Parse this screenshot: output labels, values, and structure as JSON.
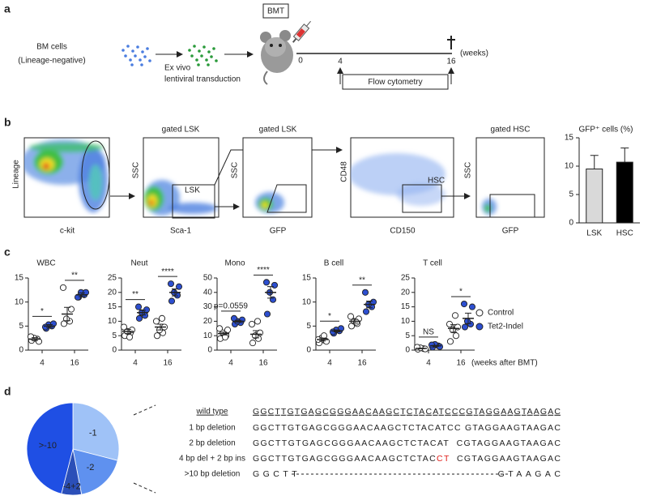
{
  "panel_a": {
    "label": "a",
    "bmt": "BMT",
    "cells": "BM cells",
    "cells_sub": "(Lineage-negative)",
    "transduction": [
      "Ex vivo",
      "lentiviral transduction"
    ],
    "timeline": {
      "ticks": [
        "0",
        "4",
        "16"
      ],
      "unit": "(weeks)"
    },
    "assay": "Flow cytometry"
  },
  "panel_b": {
    "label": "b",
    "flow_plots": [
      {
        "x_label": "c-kit",
        "y_label": "Lineage"
      },
      {
        "title": "gated LSK",
        "x_label": "Sca-1",
        "y_label": "SSC",
        "gate": "LSK"
      },
      {
        "title": "gated LSK",
        "x_label": "GFP",
        "y_label": "SSC"
      },
      {
        "x_label": "CD150",
        "y_label": "CD48",
        "gate": "HSC"
      },
      {
        "title": "gated HSC",
        "x_label": "GFP",
        "y_label": "SSC"
      }
    ],
    "chart": {
      "type": "bar",
      "title": "GFP⁺ cells (%)",
      "categories": [
        "LSK",
        "HSC"
      ],
      "values": [
        9.5,
        10.7
      ],
      "errors": [
        2.4,
        2.5
      ],
      "colors": [
        "#d9d9d9",
        "#000000"
      ],
      "ylim": [
        0,
        15
      ],
      "yticks": [
        0,
        5,
        10,
        15
      ]
    }
  },
  "panel_c": {
    "label": "c",
    "x_label": "(weeks after BMT)",
    "legend": {
      "series": [
        {
          "name": "Control",
          "color": "#ffffff"
        },
        {
          "name": "Tet2-Indel",
          "color": "#2d4fd0"
        }
      ]
    },
    "charts": [
      {
        "type": "dot",
        "title": "WBC",
        "categories": [
          "4",
          "16"
        ],
        "ylim": [
          0,
          15
        ],
        "yticks": [
          0,
          5,
          10,
          15
        ],
        "series": [
          {
            "values": [
              [
                2,
                2.3,
                2.5,
                1.8,
                2.8
              ],
              [
                5.5,
                6,
                6.5,
                8.5,
                13
              ]
            ],
            "mean": [
              2.3,
              7.5
            ],
            "sem": [
              0.3,
              1.4
            ]
          },
          {
            "values": [
              [
                4.5,
                5,
                5.3,
                5.5,
                4.8
              ],
              [
                11,
                11.5,
                12,
                12,
                11
              ]
            ],
            "mean": [
              5,
              11.5
            ],
            "sem": [
              0.3,
              0.4
            ]
          }
        ],
        "significance": [
          "*",
          "**"
        ]
      },
      {
        "type": "dot",
        "title": "Neut",
        "categories": [
          "4",
          "16"
        ],
        "ylim": [
          0,
          25
        ],
        "yticks": [
          0,
          5,
          10,
          15,
          20,
          25
        ],
        "series": [
          {
            "values": [
              [
                5,
                6,
                6.5,
                7,
                8,
                4.5
              ],
              [
                5,
                6,
                7,
                8,
                10,
                11
              ]
            ],
            "mean": [
              6.5,
              8
            ],
            "sem": [
              0.7,
              1
            ]
          },
          {
            "values": [
              [
                11,
                12,
                13,
                14,
                15
              ],
              [
                17,
                19,
                20,
                22,
                23
              ]
            ],
            "mean": [
              13,
              20
            ],
            "sem": [
              0.8,
              1.2
            ]
          }
        ],
        "significance": [
          "**",
          "****"
        ]
      },
      {
        "type": "dot",
        "title": "Mono",
        "categories": [
          "4",
          "16"
        ],
        "ylim": [
          0,
          50
        ],
        "yticks": [
          0,
          10,
          20,
          30,
          40,
          50
        ],
        "series": [
          {
            "values": [
              [
                8,
                10,
                12,
                14,
                15,
                9
              ],
              [
                5,
                8,
                10,
                12,
                18,
                20
              ]
            ],
            "mean": [
              11.5,
              11
            ],
            "sem": [
              1,
              2.5
            ]
          },
          {
            "values": [
              [
                18,
                19,
                20,
                21,
                22
              ],
              [
                25,
                35,
                40,
                45,
                47
              ]
            ],
            "mean": [
              20,
              40
            ],
            "sem": [
              0.7,
              4
            ]
          }
        ],
        "significance": [
          "p=0.0559",
          "****"
        ]
      },
      {
        "type": "dot",
        "title": "B cell",
        "categories": [
          "4",
          "16"
        ],
        "ylim": [
          0,
          15
        ],
        "yticks": [
          0,
          5,
          10,
          15
        ],
        "series": [
          {
            "values": [
              [
                1.5,
                2,
                2.5,
                1.8,
                2.2,
                3
              ],
              [
                5,
                5.5,
                6,
                6.5,
                7,
                5.8
              ]
            ],
            "mean": [
              2.2,
              6
            ],
            "sem": [
              0.3,
              0.4
            ]
          },
          {
            "values": [
              [
                3.5,
                4,
                4.2,
                4.5,
                3.8
              ],
              [
                8,
                9,
                9.5,
                10,
                12
              ]
            ],
            "mean": [
              4,
              9.5
            ],
            "sem": [
              0.2,
              0.7
            ]
          }
        ],
        "significance": [
          "*",
          "**"
        ]
      },
      {
        "type": "dot",
        "title": "T cell",
        "categories": [
          "4",
          "16"
        ],
        "ylim": [
          0,
          25
        ],
        "yticks": [
          0,
          5,
          10,
          15,
          20,
          25
        ],
        "series": [
          {
            "values": [
              [
                0.3,
                0.5,
                0.8,
                0.4,
                1
              ],
              [
                3,
                5,
                7,
                8,
                9,
                12
              ]
            ],
            "mean": [
              0.6,
              7.5
            ],
            "sem": [
              0.1,
              1.3
            ]
          },
          {
            "values": [
              [
                1,
                1.5,
                2,
                1.2,
                1.8
              ],
              [
                8,
                9,
                10,
                15,
                16
              ]
            ],
            "mean": [
              1.5,
              11
            ],
            "sem": [
              0.2,
              1.8
            ]
          }
        ],
        "significance": [
          "NS",
          "*"
        ]
      }
    ]
  },
  "panel_d": {
    "label": "d",
    "chart": {
      "type": "pie",
      "labels": [
        "-1",
        "-2",
        "-4+2",
        ">-10"
      ],
      "values": [
        29,
        18,
        7,
        46
      ],
      "colors": [
        "#9fc2f7",
        "#5f91ef",
        "#2b4fb8",
        "#1f4fe4"
      ]
    },
    "alignment": {
      "header": {
        "label": "wild type",
        "sequence": "GGCTTGTGAGCGGGAACAAGCTCTACATCCCGTAGGAAGTAAGAC"
      },
      "rows": [
        {
          "label": "1 bp deletion",
          "segments": [
            {
              "text": "GGCTTGTGAGCGGGAACAAGCTCTACATCC GTAGGAAGTAAGAC"
            }
          ]
        },
        {
          "label": "2 bp deletion",
          "segments": [
            {
              "text": "GGCTTGTGAGCGGGAACAAGCTCTACAT  CGTAGGAAGTAAGAC"
            }
          ]
        },
        {
          "label": "4 bp del + 2 bp ins",
          "segments": [
            {
              "text": "GGCTTGTGAGCGGGAACAAGCTCTAC"
            },
            {
              "text": "CT",
              "color": "#e0201b"
            },
            {
              "text": "  CGTAGGAAGTAAGAC"
            }
          ]
        },
        {
          "label": ">10 bp deletion",
          "segments": [
            {
              "text": "GGCTT                                 GTAAGAC"
            }
          ]
        }
      ]
    }
  }
}
